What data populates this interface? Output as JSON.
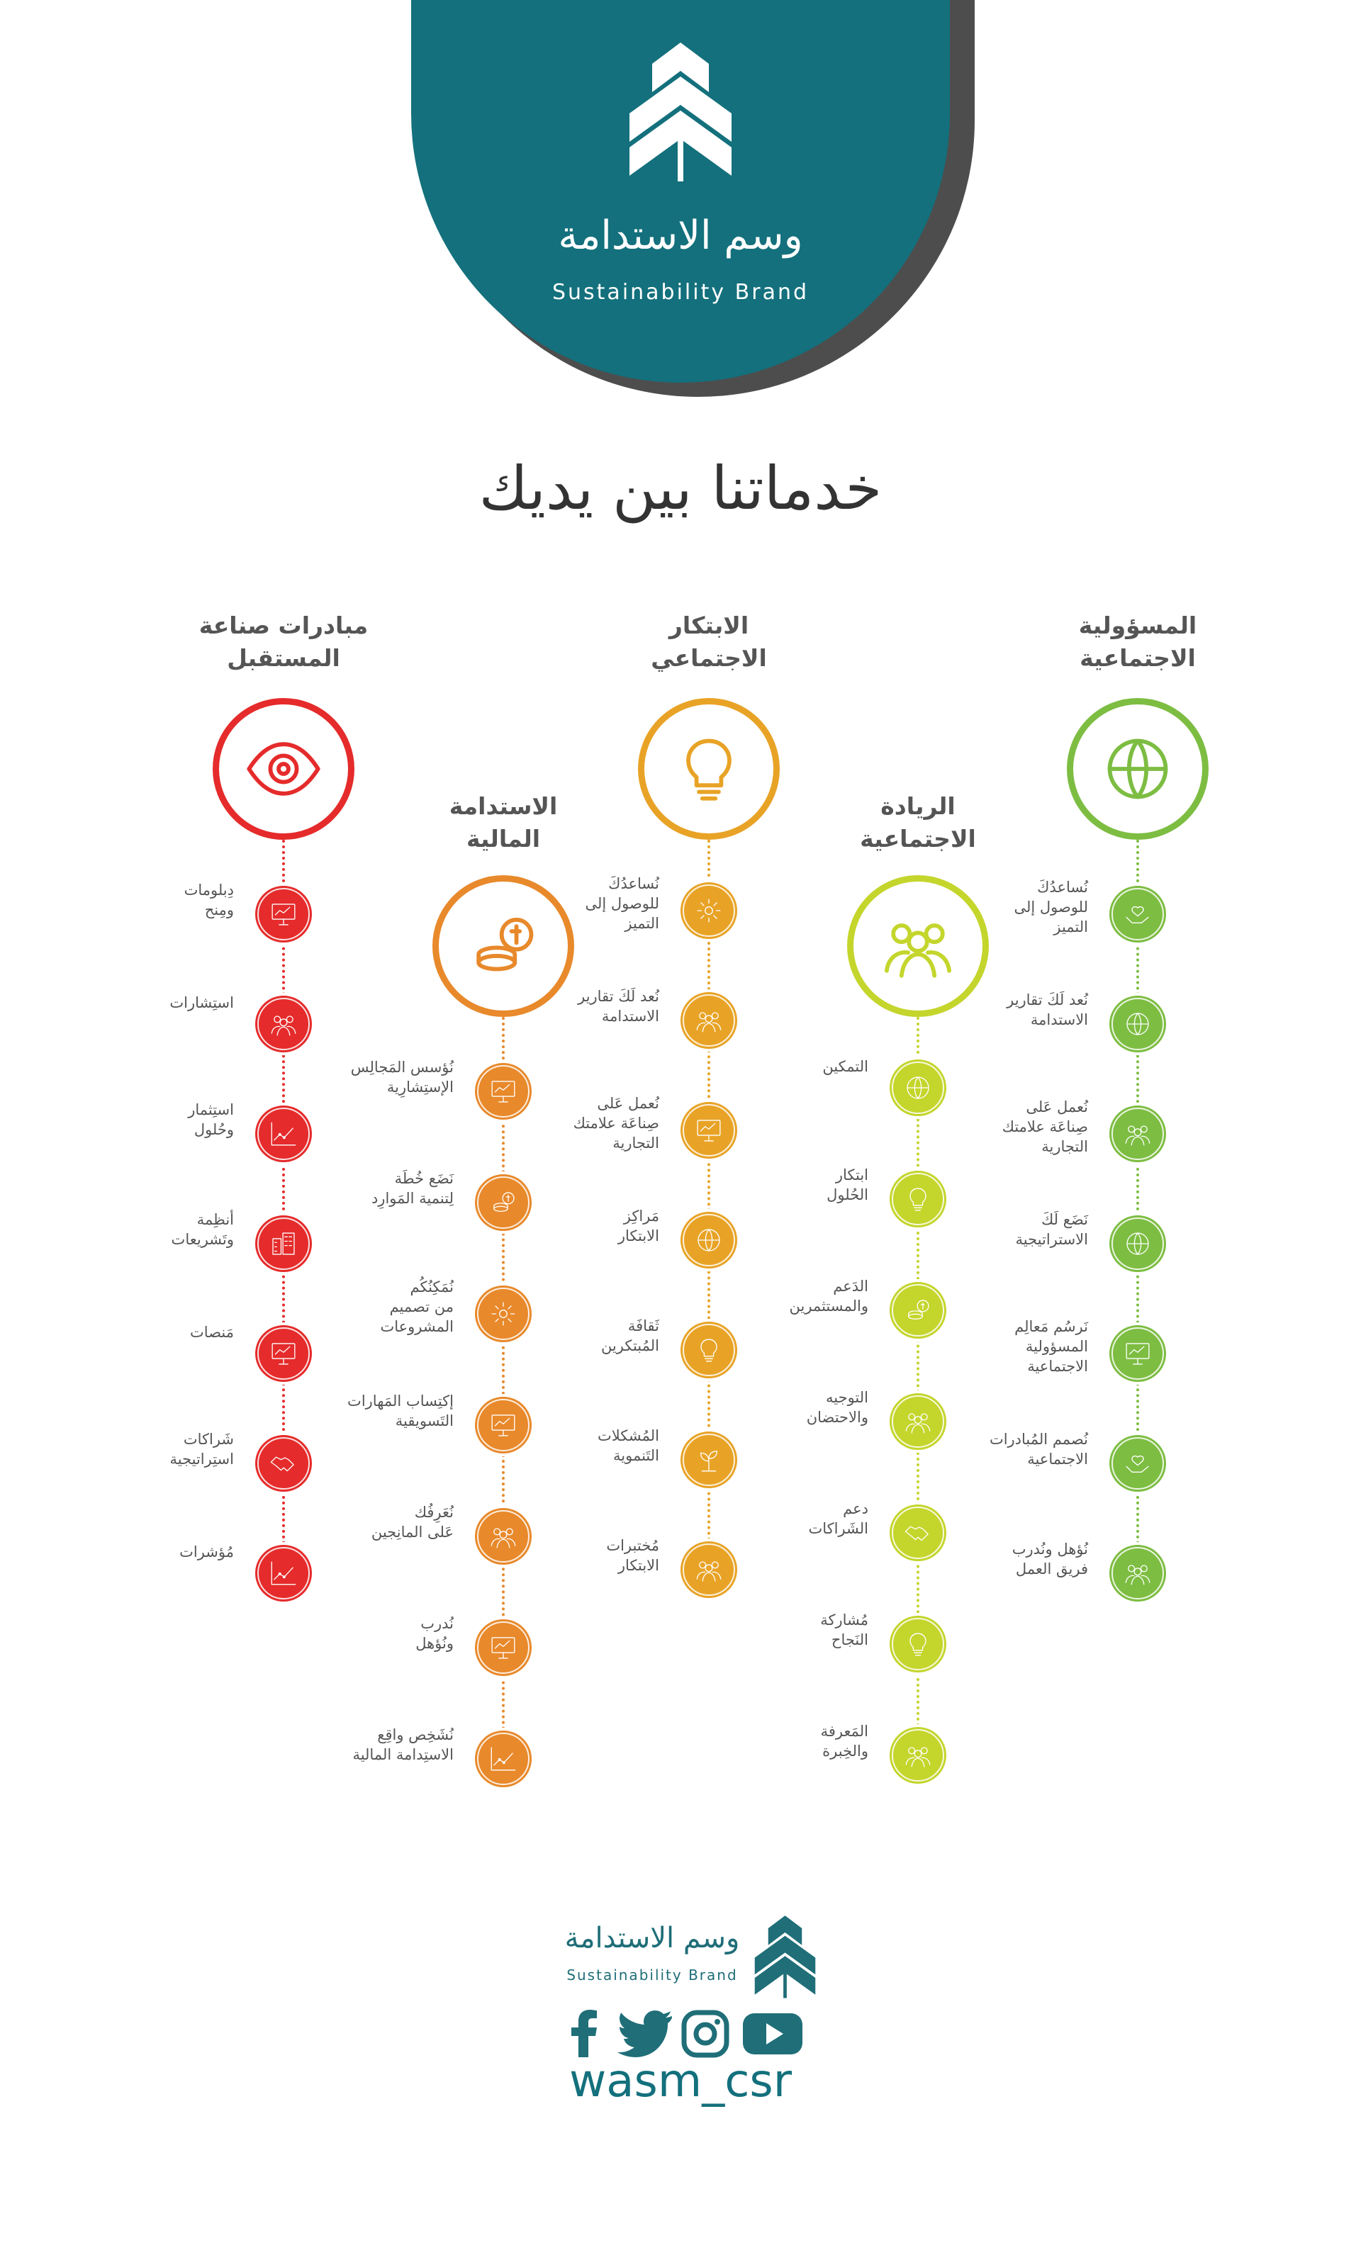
{
  "header": {
    "brand_ar": "وسم الاستدامة",
    "brand_en": "Sustainability Brand",
    "logo_icon": "wheat-leaf-logo-icon"
  },
  "page_title": "خدماتنا بين يديك",
  "colors": {
    "teal": "#13707c",
    "red": "#e52b2b",
    "orange": "#e8892b",
    "amber": "#e8a326",
    "lime": "#c4d52c",
    "green": "#7dbd42"
  },
  "columns": [
    {
      "title": "المسؤولية\nالاجتماعية",
      "color": "#7dbd42",
      "icon": "globe-people-icon",
      "items": [
        {
          "label": "نُساعدُكَ\nللوصول إلى\nالتميز",
          "icon": "hands-globe-icon"
        },
        {
          "label": "نُعد لَكَ تقارير\nالاستدامة",
          "icon": "eco-globe-icon"
        },
        {
          "label": "نُعمل عَلى\nصِناعَة علامتك\nالتجارية",
          "icon": "brand-network-icon"
        },
        {
          "label": "نَضَع لَكَ\nالاستراتيجية",
          "icon": "globe-strategy-icon"
        },
        {
          "label": "نَرسُم مَعالِم\nالمسؤولية\nالاجتماعية",
          "icon": "presentation-board-icon"
        },
        {
          "label": "نُصمم المُبادرات\nالاجتماعية",
          "icon": "hands-care-icon"
        },
        {
          "label": "نُؤهل ونُدرب\nفريق العمل",
          "icon": "team-icon"
        }
      ]
    },
    {
      "title": "الريادة\nالاجتماعية",
      "color": "#c4d52c",
      "icon": "leader-network-icon",
      "items": [
        {
          "label": "التمكين",
          "icon": "empower-globe-icon"
        },
        {
          "label": "ابتكار\nالحُلول",
          "icon": "lightbulb-icon"
        },
        {
          "label": "الدَعم\nوالمستثمرين",
          "icon": "investment-icon"
        },
        {
          "label": "التوجيه\nوالاحتضان",
          "icon": "mentoring-icon"
        },
        {
          "label": "دعم\nالشَراكات",
          "icon": "handshake-icon"
        },
        {
          "label": "مُشاركة\nالنَجاح",
          "icon": "success-bulb-icon"
        },
        {
          "label": "المَعرفة\nوالخِبرة",
          "icon": "knowledge-network-icon"
        }
      ]
    },
    {
      "title": "الابتكار\nالاجتماعي",
      "color": "#e8a326",
      "icon": "innovation-bulb-icon",
      "items": [
        {
          "label": "نُساعدُكَ\nللوصول إلى\nالتميز",
          "icon": "cloud-network-icon"
        },
        {
          "label": "نُعد لَكَ تقارير\nالاستدامة",
          "icon": "idea-people-icon"
        },
        {
          "label": "نُعمل عَلى\nصِناعَة علامتك\nالتجارية",
          "icon": "brand-board-icon"
        },
        {
          "label": "مَراكِز\nالابتكار",
          "icon": "planet-icon"
        },
        {
          "label": "ثَقافَة\nالمُبتكرين",
          "icon": "head-idea-icon"
        },
        {
          "label": "المُشكلات\nالتَنموية",
          "icon": "plant-growth-icon"
        },
        {
          "label": "مُختبرات\nالابتكار",
          "icon": "lab-team-icon"
        }
      ]
    },
    {
      "title": "الاستدامة\nالمالية",
      "color": "#e8892b",
      "icon": "finance-globe-icon",
      "items": [
        {
          "label": "نُؤسس المَجالِس\nالإستِشارِية",
          "icon": "council-icon"
        },
        {
          "label": "نَضَع خُطَة\nلِتنمية المَوارِد",
          "icon": "coins-plan-icon"
        },
        {
          "label": "نُمَكِنُكُم\nمن تصميم\nالمشروعات",
          "icon": "project-design-icon"
        },
        {
          "label": "إكتِساب المَهارات\nالتَسويقية",
          "icon": "marketing-skills-icon"
        },
        {
          "label": "نُعَرِفُك\nعَلى المانِجين",
          "icon": "managers-chat-icon"
        },
        {
          "label": "نُدرب\nونُؤهل",
          "icon": "training-board-icon"
        },
        {
          "label": "نُشَخِص واقِع\nالاستِدامة المالية",
          "icon": "analysis-icon"
        }
      ]
    },
    {
      "title": "مبادرات صناعة\nالمستقبل",
      "color": "#e52b2b",
      "icon": "vision-eye-icon",
      "items": [
        {
          "label": "دِبلومات\nومِنح",
          "icon": "graduation-icon"
        },
        {
          "label": "استِشارات",
          "icon": "consulting-icon"
        },
        {
          "label": "استِثمار\nوحُلول",
          "icon": "investment-growth-icon"
        },
        {
          "label": "أنظِمة\nوتَشريعات",
          "icon": "buildings-icon"
        },
        {
          "label": "مَنصات",
          "icon": "devices-icon"
        },
        {
          "label": "شَراكات\nاستِراتيجية",
          "icon": "partnership-icon"
        },
        {
          "label": "مُؤشرات",
          "icon": "indicators-chart-icon"
        }
      ]
    }
  ],
  "footer": {
    "brand_ar": "وسم الاستدامة",
    "brand_en": "Sustainability Brand",
    "social": [
      "facebook-icon",
      "twitter-icon",
      "instagram-icon",
      "youtube-icon"
    ],
    "handle": "wasm_csr"
  }
}
